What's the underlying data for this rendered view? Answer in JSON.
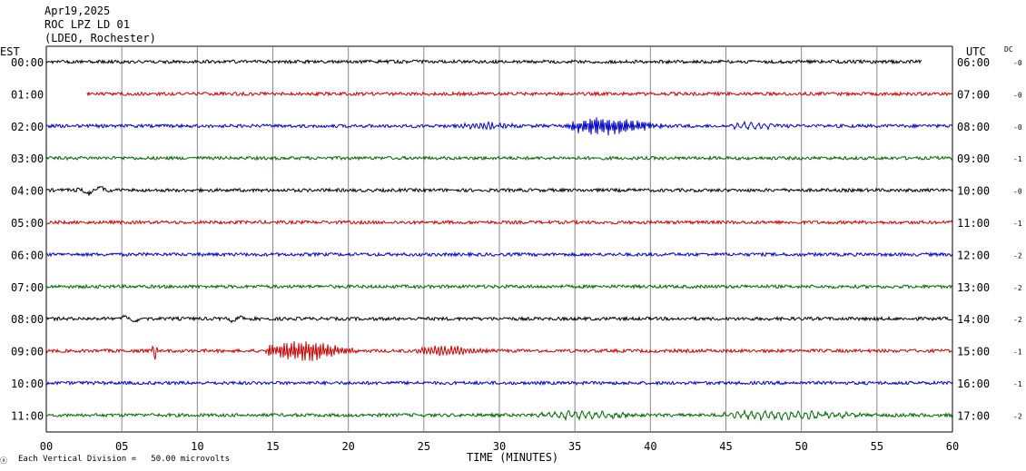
{
  "header": {
    "date": "Apr19,2025",
    "station": "ROC LPZ LD 01",
    "network": "(LDEO, Rochester)"
  },
  "left_zone": "EST",
  "right_zone": "UTC",
  "dc_label": "DC",
  "footnote": "Each Vertical Division =   50.00 microvolts",
  "corner_mark": "ⓐ",
  "chart_data": {
    "type": "line",
    "title": "",
    "xlabel": "TIME (MINUTES)",
    "ylabel": "",
    "xlim": [
      0,
      60
    ],
    "x_ticks": [
      0,
      5,
      10,
      15,
      20,
      25,
      30,
      35,
      40,
      45,
      50,
      55,
      60
    ],
    "x_tick_labels": [
      "00",
      "05",
      "10",
      "15",
      "20",
      "25",
      "30",
      "35",
      "40",
      "45",
      "50",
      "55",
      "60"
    ],
    "grid": true,
    "trace_colors": [
      "#000000",
      "#cc0000",
      "#0000cc",
      "#006600"
    ],
    "rows": [
      {
        "est": "00:00",
        "utc": "06:00",
        "dc": "-0",
        "start_min": 0.0,
        "end_min": 58.0,
        "events": []
      },
      {
        "est": "01:00",
        "utc": "07:00",
        "dc": "-0",
        "start_min": 2.7,
        "end_min": 60.0,
        "events": []
      },
      {
        "est": "02:00",
        "utc": "08:00",
        "dc": "-0",
        "start_min": 0.0,
        "end_min": 60.0,
        "events": [
          {
            "start": 27.5,
            "end": 33.5,
            "amp": 0.35,
            "freq": 1.6,
            "decay": 0.7
          },
          {
            "start": 34.5,
            "end": 45.0,
            "amp": 1.0,
            "freq": 1.2,
            "decay": 0.6
          },
          {
            "start": 45.0,
            "end": 52.0,
            "amp": 0.35,
            "freq": 1.8,
            "decay": 0.6
          }
        ]
      },
      {
        "est": "03:00",
        "utc": "09:00",
        "dc": "-1",
        "start_min": 0.0,
        "end_min": 60.0,
        "events": []
      },
      {
        "est": "04:00",
        "utc": "10:00",
        "dc": "-0",
        "start_min": 0.0,
        "end_min": 60.0,
        "events": [
          {
            "start": 2.0,
            "end": 6.0,
            "amp": 0.45,
            "freq": 2.0,
            "decay": 0.6
          }
        ]
      },
      {
        "est": "05:00",
        "utc": "11:00",
        "dc": "-1",
        "start_min": 0.0,
        "end_min": 60.0,
        "events": []
      },
      {
        "est": "06:00",
        "utc": "12:00",
        "dc": "-2",
        "start_min": 0.0,
        "end_min": 60.0,
        "events": []
      },
      {
        "est": "07:00",
        "utc": "13:00",
        "dc": "-2",
        "start_min": 0.0,
        "end_min": 60.0,
        "events": []
      },
      {
        "est": "08:00",
        "utc": "14:00",
        "dc": "-2",
        "start_min": 0.0,
        "end_min": 60.0,
        "events": [
          {
            "start": 4.5,
            "end": 8.0,
            "amp": 0.3,
            "freq": 2.0,
            "decay": 0.5
          },
          {
            "start": 12.0,
            "end": 14.0,
            "amp": 0.3,
            "freq": 2.0,
            "decay": 0.6
          }
        ]
      },
      {
        "est": "09:00",
        "utc": "15:00",
        "dc": "-1",
        "start_min": 0.0,
        "end_min": 60.0,
        "events": [
          {
            "start": 7.0,
            "end": 7.6,
            "amp": 0.9,
            "freq": 2.5,
            "decay": 0.5
          },
          {
            "start": 14.5,
            "end": 24.5,
            "amp": 1.25,
            "freq": 1.3,
            "decay": 0.8
          },
          {
            "start": 24.5,
            "end": 32.0,
            "amp": 0.6,
            "freq": 1.5,
            "decay": 0.8
          }
        ]
      },
      {
        "est": "10:00",
        "utc": "16:00",
        "dc": "-1",
        "start_min": 0.0,
        "end_min": 60.0,
        "events": []
      },
      {
        "est": "11:00",
        "utc": "17:00",
        "dc": "-2",
        "start_min": 0.0,
        "end_min": 60.0,
        "events": [
          {
            "start": 32.2,
            "end": 44.0,
            "amp": 0.35,
            "freq": 1.8,
            "decay": 0.3
          },
          {
            "start": 44.5,
            "end": 60.0,
            "amp": 0.4,
            "freq": 1.8,
            "decay": 0.2
          }
        ]
      }
    ]
  }
}
